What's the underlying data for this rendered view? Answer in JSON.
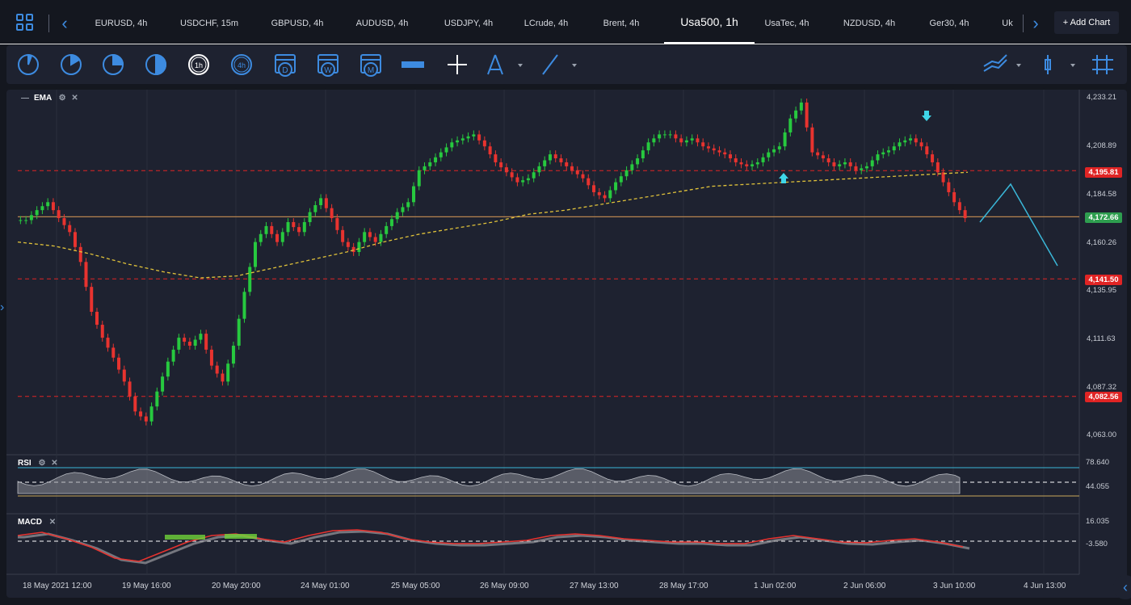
{
  "tabs": [
    {
      "label": "EURUSD, 4h"
    },
    {
      "label": "USDCHF, 15m"
    },
    {
      "label": "GBPUSD, 4h"
    },
    {
      "label": "AUDUSD, 4h"
    },
    {
      "label": "USDJPY, 4h"
    },
    {
      "label": "LCrude, 4h"
    },
    {
      "label": "Brent, 4h"
    },
    {
      "label": "Usa500, 1h"
    },
    {
      "label": "UsaTec, 4h"
    },
    {
      "label": "NZDUSD, 4h"
    },
    {
      "label": "Ger30, 4h"
    },
    {
      "label": "Uk"
    }
  ],
  "active_tab": "Usa500, 1h",
  "add_chart_label": "+ Add Chart",
  "toolbar": {
    "timeframes": [
      "1h",
      "4h",
      "D",
      "W",
      "M"
    ],
    "icons": [
      "clock-quarter-icon",
      "clock-third-icon",
      "clock-half-icon",
      "clock-half-fill-icon",
      "clock-1h-icon",
      "clock-4h-icon",
      "calendar-d-icon",
      "calendar-w-icon",
      "calendar-m-icon",
      "ruler-icon",
      "crosshair-icon",
      "compass-icon",
      "trendline-icon",
      "chart-type-icon",
      "candles-icon",
      "grid-icon"
    ]
  },
  "main_panel": {
    "indicator_label": "EMA",
    "y_ticks": [
      "4,233.21",
      "4,208.89",
      "4,184.58",
      "4,160.26",
      "4,135.95",
      "4,111.63",
      "4,087.32",
      "4,063.00"
    ],
    "price_tags": [
      {
        "value": "4,195.81",
        "color": "#e02424"
      },
      {
        "value": "4,172.66",
        "color": "#2e9e4f"
      },
      {
        "value": "4,141.50",
        "color": "#e02424"
      },
      {
        "value": "4,082.56",
        "color": "#e02424"
      }
    ]
  },
  "rsi_panel": {
    "label": "RSI",
    "ticks": [
      "78.640",
      "44.055"
    ]
  },
  "macd_panel": {
    "label": "MACD",
    "ticks": [
      "16.035",
      "-3.580"
    ]
  },
  "x_labels": [
    "18 May 2021 12:00",
    "19 May 16:00",
    "20 May 20:00",
    "24 May 01:00",
    "25 May 05:00",
    "26 May 09:00",
    "27 May 13:00",
    "28 May 17:00",
    "1 Jun 02:00",
    "2 Jun 06:00",
    "3 Jun 10:00",
    "4 Jun 13:00"
  ],
  "chart_data": {
    "type": "candlestick",
    "y_range": [
      4063.0,
      4233.21
    ],
    "horizontal_levels": [
      4195.81,
      4172.66,
      4141.5,
      4082.56
    ],
    "approx_close_path": [
      4171,
      4176,
      4180,
      4172,
      4165,
      4150,
      4125,
      4112,
      4102,
      4090,
      4075,
      4070,
      4085,
      4100,
      4112,
      4108,
      4114,
      4098,
      4090,
      4108,
      4135,
      4160,
      4168,
      4160,
      4170,
      4165,
      4175,
      4182,
      4172,
      4160,
      4155,
      4165,
      4160,
      4168,
      4175,
      4180,
      4196,
      4200,
      4205,
      4210,
      4212,
      4214,
      4208,
      4200,
      4195,
      4190,
      4192,
      4198,
      4204,
      4200,
      4196,
      4192,
      4185,
      4182,
      4190,
      4196,
      4202,
      4210,
      4214,
      4214,
      4210,
      4212,
      4208,
      4206,
      4204,
      4200,
      4198,
      4200,
      4205,
      4208,
      4222,
      4230,
      4205,
      4202,
      4198,
      4200,
      4196,
      4198,
      4204,
      4206,
      4210,
      4212,
      4208,
      4200,
      4190,
      4180,
      4172
    ],
    "ema_path": [
      4160,
      4158,
      4154,
      4149,
      4145,
      4142,
      4143,
      4147,
      4151,
      4155,
      4160,
      4164,
      4167,
      4170,
      4174,
      4176,
      4179,
      4182,
      4185,
      4188,
      4189,
      4190,
      4191,
      4192,
      4193,
      4194,
      4195
    ],
    "projection": [
      [
        4172,
        0
      ],
      [
        4188,
        1
      ],
      [
        4152,
        2
      ]
    ]
  }
}
